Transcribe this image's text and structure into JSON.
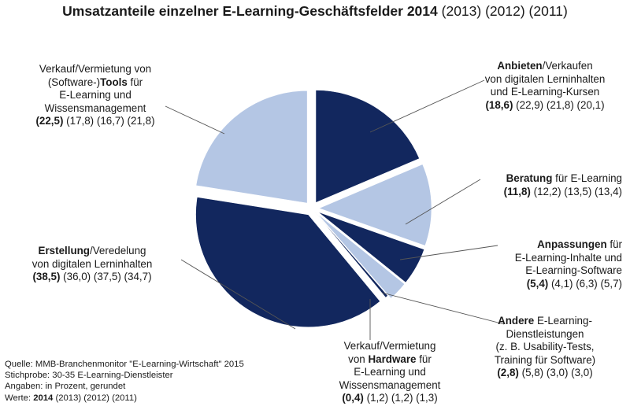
{
  "chart_data": {
    "type": "pie",
    "title": "Umsatzanteile einzelner  E-Learning-Geschäftsfelder",
    "title_year_bold": "2014",
    "title_years": "(2013) (2012) (2011)",
    "years": [
      "2014",
      "2013",
      "2012",
      "2011"
    ],
    "colors": {
      "dark": "#12275e",
      "light": "#b4c6e4",
      "leader": "#555555"
    },
    "slices": [
      {
        "key": "anbieten",
        "color": "dark",
        "value": 18.6,
        "values_prev": [
          22.9,
          21.8,
          20.1
        ],
        "label_lines": [
          [
            {
              "t": "Anbieten",
              "b": true
            },
            {
              "t": "/Verkaufen",
              "b": false
            }
          ],
          [
            {
              "t": "von digitalen Lerninhalten",
              "b": false
            }
          ],
          [
            {
              "t": "und E-Learning-Kursen",
              "b": false
            }
          ],
          [
            {
              "t": "(18,6)",
              "b": true
            },
            {
              "t": " (22,9) (21,8) (20,1)",
              "b": false
            }
          ]
        ]
      },
      {
        "key": "beratung",
        "color": "light",
        "value": 11.8,
        "values_prev": [
          12.2,
          13.5,
          13.4
        ],
        "label_lines": [
          [
            {
              "t": "Beratung",
              "b": true
            },
            {
              "t": " für E-Learning",
              "b": false
            }
          ],
          [
            {
              "t": "(11,8)",
              "b": true
            },
            {
              "t": " (12,2) (13,5) (13,4)",
              "b": false
            }
          ]
        ]
      },
      {
        "key": "anpassungen",
        "color": "dark",
        "value": 5.4,
        "values_prev": [
          4.1,
          6.3,
          5.7
        ],
        "label_lines": [
          [
            {
              "t": "Anpassungen",
              "b": true
            },
            {
              "t": " für",
              "b": false
            }
          ],
          [
            {
              "t": "E-Learning-Inhalte und",
              "b": false
            }
          ],
          [
            {
              "t": "E-Learning-Software",
              "b": false
            }
          ],
          [
            {
              "t": "(5,4)",
              "b": true
            },
            {
              "t": " (4,1) (6,3) (5,7)",
              "b": false
            }
          ]
        ]
      },
      {
        "key": "andere",
        "color": "light",
        "value": 2.8,
        "values_prev": [
          5.8,
          3.0,
          3.0
        ],
        "label_lines": [
          [
            {
              "t": "Andere",
              "b": true
            },
            {
              "t": " E-Learning-",
              "b": false
            }
          ],
          [
            {
              "t": "Dienstleistungen",
              "b": false
            }
          ],
          [
            {
              "t": "(z. B. Usability-Tests,",
              "b": false
            }
          ],
          [
            {
              "t": "Training für Software)",
              "b": false
            }
          ],
          [
            {
              "t": "(2,8)",
              "b": true
            },
            {
              "t": " (5,8) (3,0) (3,0)",
              "b": false
            }
          ]
        ]
      },
      {
        "key": "hardware",
        "color": "dark",
        "value": 0.4,
        "values_prev": [
          1.2,
          1.2,
          1.3
        ],
        "label_lines": [
          [
            {
              "t": "Verkauf/Vermietung",
              "b": false
            }
          ],
          [
            {
              "t": "von ",
              "b": false
            },
            {
              "t": "Hardware",
              "b": true
            },
            {
              "t": " für",
              "b": false
            }
          ],
          [
            {
              "t": "E-Learning und",
              "b": false
            }
          ],
          [
            {
              "t": "Wissensmanagement",
              "b": false
            }
          ],
          [
            {
              "t": "(0,4)",
              "b": true
            },
            {
              "t": " (1,2) (1,2) (1,3)",
              "b": false
            }
          ]
        ]
      },
      {
        "key": "erstellung",
        "color": "dark",
        "value": 38.5,
        "values_prev": [
          36.0,
          37.5,
          34.7
        ],
        "label_lines": [
          [
            {
              "t": "Erstellung",
              "b": true
            },
            {
              "t": "/Veredelung",
              "b": false
            }
          ],
          [
            {
              "t": "von digitalen Lerninhalten",
              "b": false
            }
          ],
          [
            {
              "t": "(38,5)",
              "b": true
            },
            {
              "t": " (36,0) (37,5) (34,7)",
              "b": false
            }
          ]
        ]
      },
      {
        "key": "tools",
        "color": "light",
        "value": 22.5,
        "values_prev": [
          17.8,
          16.7,
          21.8
        ],
        "label_lines": [
          [
            {
              "t": "Verkauf/Vermietung von",
              "b": false
            }
          ],
          [
            {
              "t": "(Software-)",
              "b": false
            },
            {
              "t": "Tools",
              "b": true
            },
            {
              "t": " für",
              "b": false
            }
          ],
          [
            {
              "t": "E-Learning und",
              "b": false
            }
          ],
          [
            {
              "t": "Wissensmanagement",
              "b": false
            }
          ],
          [
            {
              "t": "(22,5)",
              "b": true
            },
            {
              "t": " (17,8) (16,7) (21,8)",
              "b": false
            }
          ]
        ]
      }
    ]
  },
  "source_note": {
    "quelle": "Quelle:  MMB-Branchenmonitor  \"E-Learning-Wirtschaft\"  2015",
    "stichprobe": "Stichprobe:  30-35  E-Learning-Dienstleister",
    "angaben": "Angaben:  in Prozent,  gerundet",
    "werte_prefix": "Werte: ",
    "werte_bold": "2014",
    "werte_rest": " (2013) (2012) (2011)"
  }
}
